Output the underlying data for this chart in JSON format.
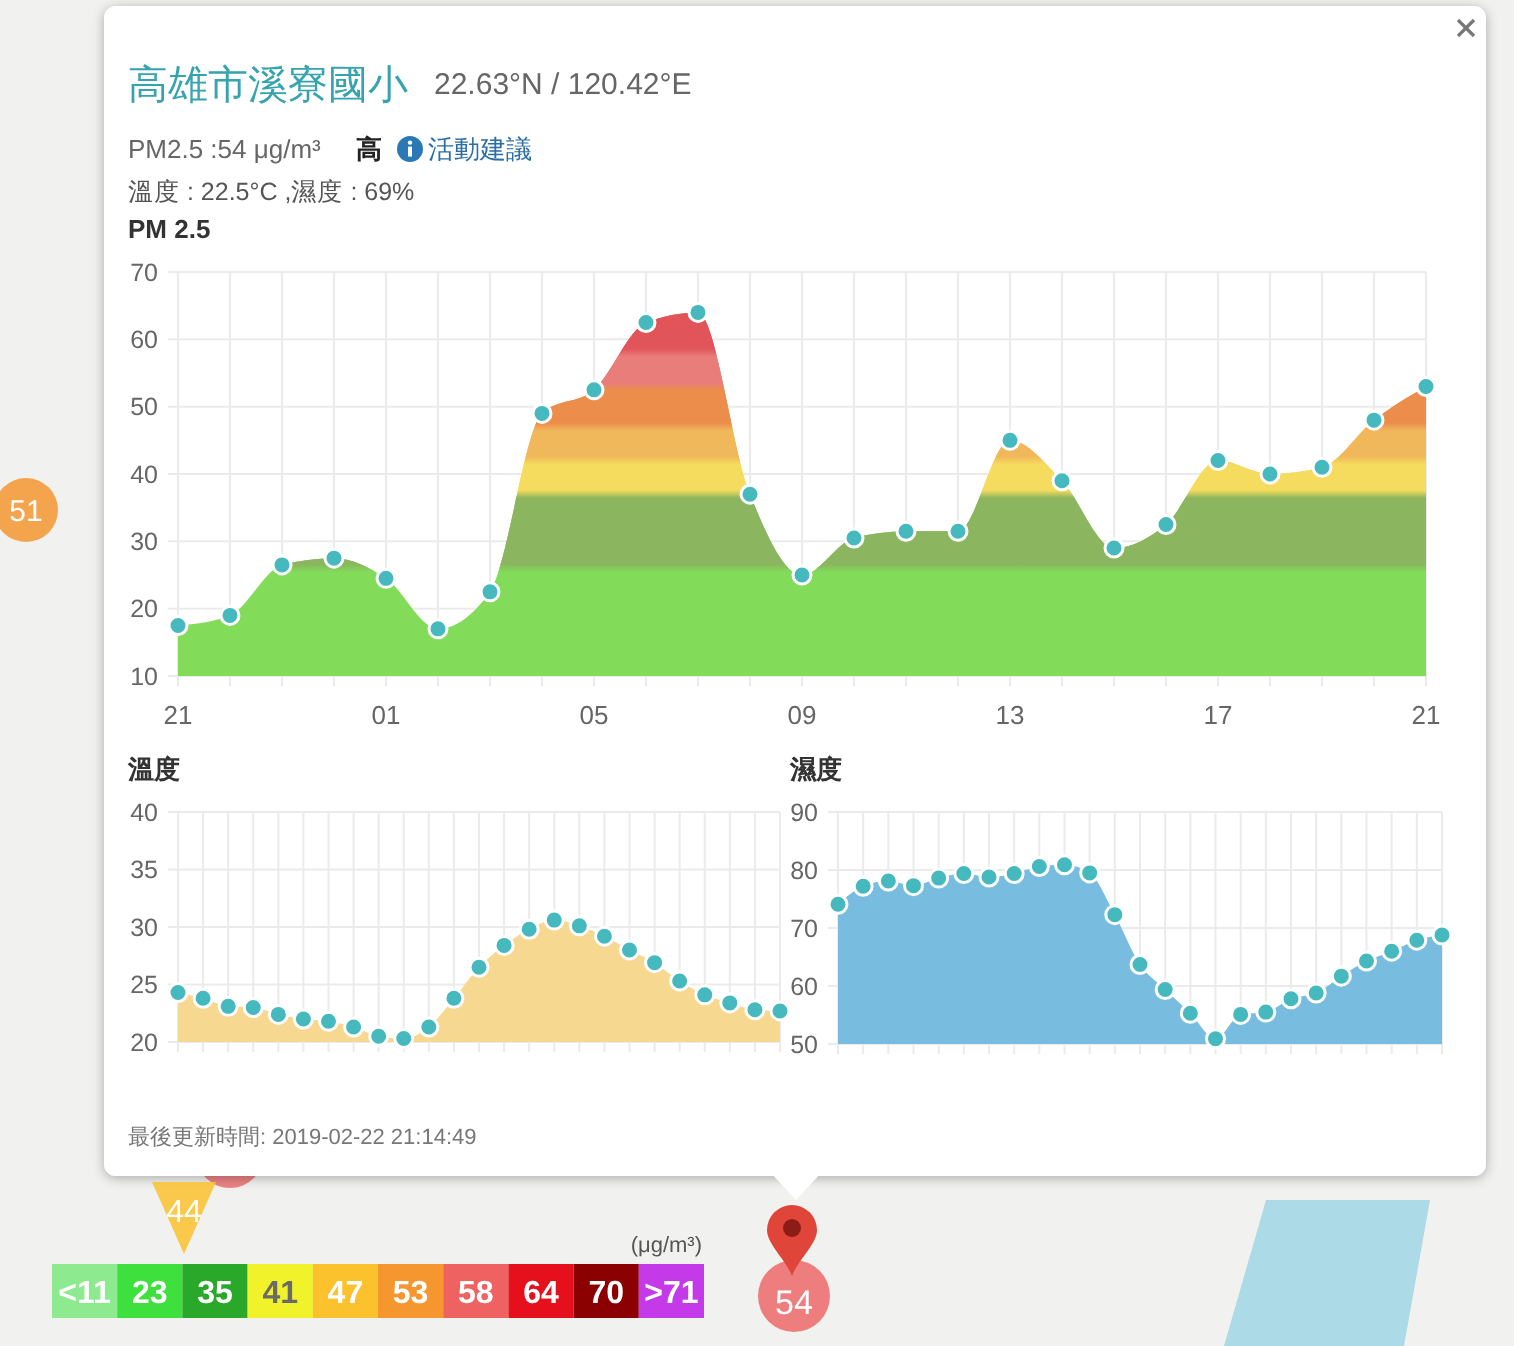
{
  "chart_data": [
    {
      "type": "other",
      "title": "高雄市溪寮國小",
      "subtitle": "22.63°N / 120.42°E",
      "annotations": [
        "PM2.5 :54 μg/m³",
        "高",
        "活動建議",
        "溫度 : 22.5°C ,濕度 : 69%",
        "最後更新時間: 2019-02-22 21:14:49"
      ]
    },
    {
      "type": "area",
      "title": "PM 2.5",
      "x": [
        "2019-02-21T21:00",
        "2019-02-21T22:00",
        "2019-02-21T23:00",
        "2019-02-22T00:00",
        "2019-02-22T01:00",
        "2019-02-22T02:00",
        "2019-02-22T03:00",
        "2019-02-22T04:00",
        "2019-02-22T05:00",
        "2019-02-22T06:00",
        "2019-02-22T07:00",
        "2019-02-22T08:00",
        "2019-02-22T09:00",
        "2019-02-22T10:00",
        "2019-02-22T11:00",
        "2019-02-22T12:00",
        "2019-02-22T13:00",
        "2019-02-22T14:00",
        "2019-02-22T15:00",
        "2019-02-22T16:00",
        "2019-02-22T17:00",
        "2019-02-22T18:00",
        "2019-02-22T19:00",
        "2019-02-22T20:00",
        "2019-02-22T21:00"
      ],
      "xlim": [
        "2019-02-21T21:00",
        "2019-02-22T21:00"
      ],
      "xticks": [
        {
          "value": "2019-02-21T21:00",
          "label": "21"
        },
        {
          "value": "2019-02-21T22:00",
          "label": null
        },
        {
          "value": "2019-02-21T23:00",
          "label": null
        },
        {
          "value": "2019-02-22T00:00",
          "label": null
        },
        {
          "value": "2019-02-22T01:00",
          "label": "01"
        },
        {
          "value": "2019-02-22T02:00",
          "label": null
        },
        {
          "value": "2019-02-22T03:00",
          "label": null
        },
        {
          "value": "2019-02-22T04:00",
          "label": null
        },
        {
          "value": "2019-02-22T05:00",
          "label": "05"
        },
        {
          "value": "2019-02-22T06:00",
          "label": null
        },
        {
          "value": "2019-02-22T07:00",
          "label": null
        },
        {
          "value": "2019-02-22T08:00",
          "label": null
        },
        {
          "value": "2019-02-22T09:00",
          "label": "09"
        },
        {
          "value": "2019-02-22T10:00",
          "label": null
        },
        {
          "value": "2019-02-22T11:00",
          "label": null
        },
        {
          "value": "2019-02-22T12:00",
          "label": null
        },
        {
          "value": "2019-02-22T13:00",
          "label": "13"
        },
        {
          "value": "2019-02-22T14:00",
          "label": null
        },
        {
          "value": "2019-02-22T15:00",
          "label": null
        },
        {
          "value": "2019-02-22T16:00",
          "label": null
        },
        {
          "value": "2019-02-22T17:00",
          "label": "17"
        },
        {
          "value": "2019-02-22T18:00",
          "label": null
        },
        {
          "value": "2019-02-22T19:00",
          "label": null
        },
        {
          "value": "2019-02-22T20:00",
          "label": null
        },
        {
          "value": "2019-02-22T21:00",
          "label": "21"
        }
      ],
      "ylim": [
        10,
        70
      ],
      "yticks": [
        10,
        20,
        30,
        40,
        50,
        60,
        70
      ],
      "grid": true,
      "marker": "circle",
      "series": [
        {
          "color": "#82dc5a",
          "values": [
            17.5,
            19,
            26.5,
            27.5,
            24.5,
            17,
            22.5,
            49,
            52.5,
            62.5,
            64,
            37,
            25,
            30.5,
            31.5,
            31.5,
            45,
            39,
            29,
            32.5,
            42,
            40,
            41,
            48,
            53
          ]
        }
      ],
      "bands": [
        {
          "axis": "y",
          "from": 26,
          "to": 37,
          "color": "#8bb55e"
        },
        {
          "axis": "y",
          "from": 37,
          "to": 42,
          "color": "#f6dc5e"
        },
        {
          "axis": "y",
          "from": 42,
          "to": 47,
          "color": "#f1b85b"
        },
        {
          "axis": "y",
          "from": 47,
          "to": 53,
          "color": "#ec8d4c"
        },
        {
          "axis": "y",
          "from": 53,
          "to": 58,
          "color": "#e97d7a"
        },
        {
          "axis": "y",
          "from": 58,
          "to": 70,
          "color": "#e0545a"
        }
      ]
    },
    {
      "type": "area",
      "title": "溫度",
      "categories": [
        null,
        null,
        null,
        null,
        null,
        null,
        null,
        null,
        null,
        null,
        null,
        null,
        null,
        null,
        null,
        null,
        null,
        null,
        null,
        null,
        null,
        null,
        null,
        null,
        null
      ],
      "ylim": [
        20,
        40
      ],
      "yticks": [
        20,
        25,
        30,
        35,
        40
      ],
      "grid": true,
      "marker": "circle",
      "series": [
        {
          "color": "#f7d891",
          "values": [
            24.3,
            23.8,
            23.1,
            23.0,
            22.4,
            22.0,
            21.8,
            21.3,
            20.5,
            20.3,
            21.3,
            23.8,
            26.5,
            28.4,
            29.8,
            30.6,
            30.1,
            29.2,
            28.0,
            26.9,
            25.3,
            24.1,
            23.4,
            22.8,
            22.7
          ]
        }
      ]
    },
    {
      "type": "area",
      "title": "濕度",
      "categories": [
        null,
        null,
        null,
        null,
        null,
        null,
        null,
        null,
        null,
        null,
        null,
        null,
        null,
        null,
        null,
        null,
        null,
        null,
        null,
        null,
        null,
        null,
        null,
        null,
        null
      ],
      "ylim": [
        50,
        90
      ],
      "yticks": [
        50,
        60,
        70,
        80,
        90
      ],
      "grid": true,
      "marker": "circle",
      "series": [
        {
          "color": "#78bddf",
          "values": [
            74.1,
            77.2,
            78.1,
            77.3,
            78.6,
            79.4,
            78.8,
            79.4,
            80.6,
            80.9,
            79.5,
            72.3,
            63.7,
            59.4,
            55.3,
            50.9,
            55.1,
            55.5,
            57.8,
            58.8,
            61.7,
            64.3,
            66.0,
            67.9,
            68.8
          ]
        }
      ]
    },
    {
      "type": "other",
      "title": "(μg/m³)",
      "categories": [
        "<11",
        "23",
        "35",
        "41",
        "47",
        "53",
        "58",
        "64",
        "70",
        ">71"
      ],
      "colors": [
        "#8eea8e",
        "#3ee03e",
        "#2aa82a",
        "#f2f22a",
        "#fcc22e",
        "#f5962f",
        "#ee6262",
        "#e60f1c",
        "#8b0000",
        "#c43ae8"
      ],
      "annotations": [
        "51",
        "44",
        "54"
      ]
    }
  ]
}
